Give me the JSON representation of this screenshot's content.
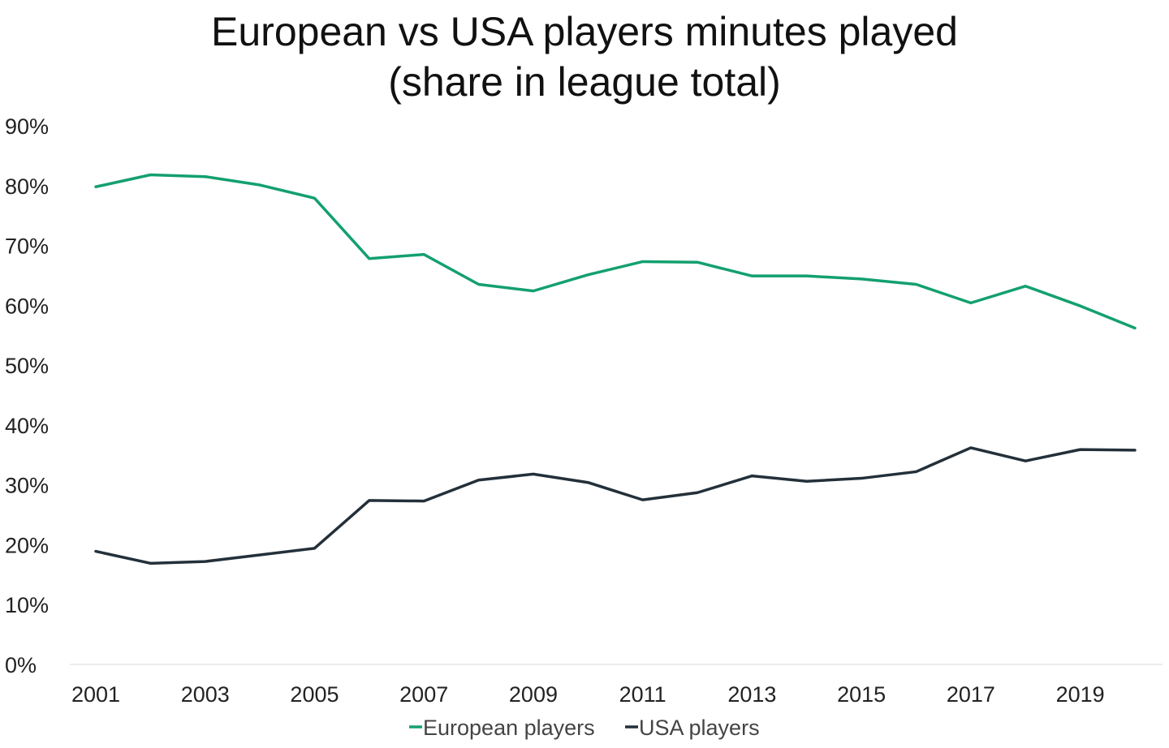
{
  "chart_data": {
    "type": "line",
    "title": "European vs USA players minutes played",
    "subtitle": "(share in league total)",
    "x": [
      2001,
      2002,
      2003,
      2004,
      2005,
      2006,
      2007,
      2008,
      2009,
      2010,
      2011,
      2012,
      2013,
      2014,
      2015,
      2016,
      2017,
      2018,
      2019,
      2020
    ],
    "x_tick_labels": [
      "2001",
      "2003",
      "2005",
      "2007",
      "2009",
      "2011",
      "2013",
      "2015",
      "2017",
      "2019"
    ],
    "y_tick_labels": [
      "0%",
      "10%",
      "20%",
      "30%",
      "40%",
      "50%",
      "60%",
      "70%",
      "80%",
      "90%"
    ],
    "ylim": [
      0,
      90
    ],
    "y_unit": "%",
    "grid": false,
    "legend_position": "bottom",
    "series": [
      {
        "name": "European players",
        "color": "#13a06e",
        "values": [
          79.8,
          81.8,
          81.5,
          80.1,
          77.9,
          67.8,
          68.5,
          63.5,
          62.4,
          65.1,
          67.3,
          67.2,
          64.9,
          64.9,
          64.4,
          63.5,
          60.4,
          63.2,
          59.9,
          56.2
        ]
      },
      {
        "name": "USA players",
        "color": "#23303a",
        "values": [
          18.9,
          16.9,
          17.2,
          18.3,
          19.4,
          27.4,
          27.3,
          30.8,
          31.8,
          30.4,
          27.5,
          28.7,
          31.5,
          30.6,
          31.1,
          32.2,
          36.2,
          34.0,
          35.9,
          35.8
        ]
      }
    ]
  }
}
